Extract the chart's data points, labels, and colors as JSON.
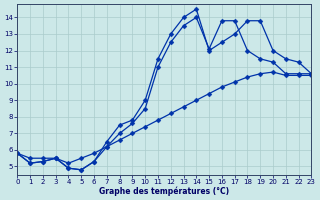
{
  "xlabel": "Graphe des températures (°C)",
  "background_color": "#cce8e8",
  "grid_color": "#aacccc",
  "line_color": "#0033aa",
  "marker": "D",
  "markersize": 2.5,
  "linewidth": 0.9,
  "xlim": [
    0,
    23
  ],
  "ylim": [
    4.5,
    14.8
  ],
  "xticks": [
    0,
    1,
    2,
    3,
    4,
    5,
    6,
    7,
    8,
    9,
    10,
    11,
    12,
    13,
    14,
    15,
    16,
    17,
    18,
    19,
    20,
    21,
    22,
    23
  ],
  "yticks": [
    5,
    6,
    7,
    8,
    9,
    10,
    11,
    12,
    13,
    14
  ],
  "series": [
    {
      "x": [
        0,
        1,
        2,
        3,
        4,
        5,
        6,
        7,
        8,
        9,
        10,
        11,
        12,
        13,
        14,
        15,
        16,
        17,
        18,
        19,
        20,
        21,
        22,
        23
      ],
      "y": [
        5.8,
        5.2,
        5.3,
        5.5,
        4.9,
        4.8,
        5.3,
        6.5,
        7.5,
        7.8,
        9.0,
        11.5,
        13.0,
        14.0,
        14.5,
        12.0,
        12.5,
        13.0,
        13.8,
        13.8,
        12.0,
        11.5,
        11.3,
        10.6
      ]
    },
    {
      "x": [
        0,
        1,
        2,
        3,
        4,
        5,
        6,
        7,
        8,
        9,
        10,
        11,
        12,
        13,
        14,
        15,
        16,
        17,
        18,
        19,
        20,
        21,
        22,
        23
      ],
      "y": [
        5.8,
        5.2,
        5.3,
        5.5,
        4.9,
        4.8,
        5.3,
        6.2,
        7.0,
        7.6,
        8.5,
        11.0,
        12.5,
        13.5,
        14.0,
        12.1,
        13.8,
        13.8,
        12.0,
        11.5,
        11.3,
        10.6,
        10.6,
        10.6
      ]
    },
    {
      "x": [
        0,
        1,
        2,
        3,
        4,
        5,
        6,
        7,
        8,
        9,
        10,
        11,
        12,
        13,
        14,
        15,
        16,
        17,
        18,
        19,
        20,
        21,
        22,
        23
      ],
      "y": [
        5.8,
        5.5,
        5.5,
        5.5,
        5.2,
        5.5,
        5.8,
        6.2,
        6.6,
        7.0,
        7.4,
        7.8,
        8.2,
        8.6,
        9.0,
        9.4,
        9.8,
        10.1,
        10.4,
        10.6,
        10.7,
        10.5,
        10.5,
        10.5
      ]
    }
  ]
}
